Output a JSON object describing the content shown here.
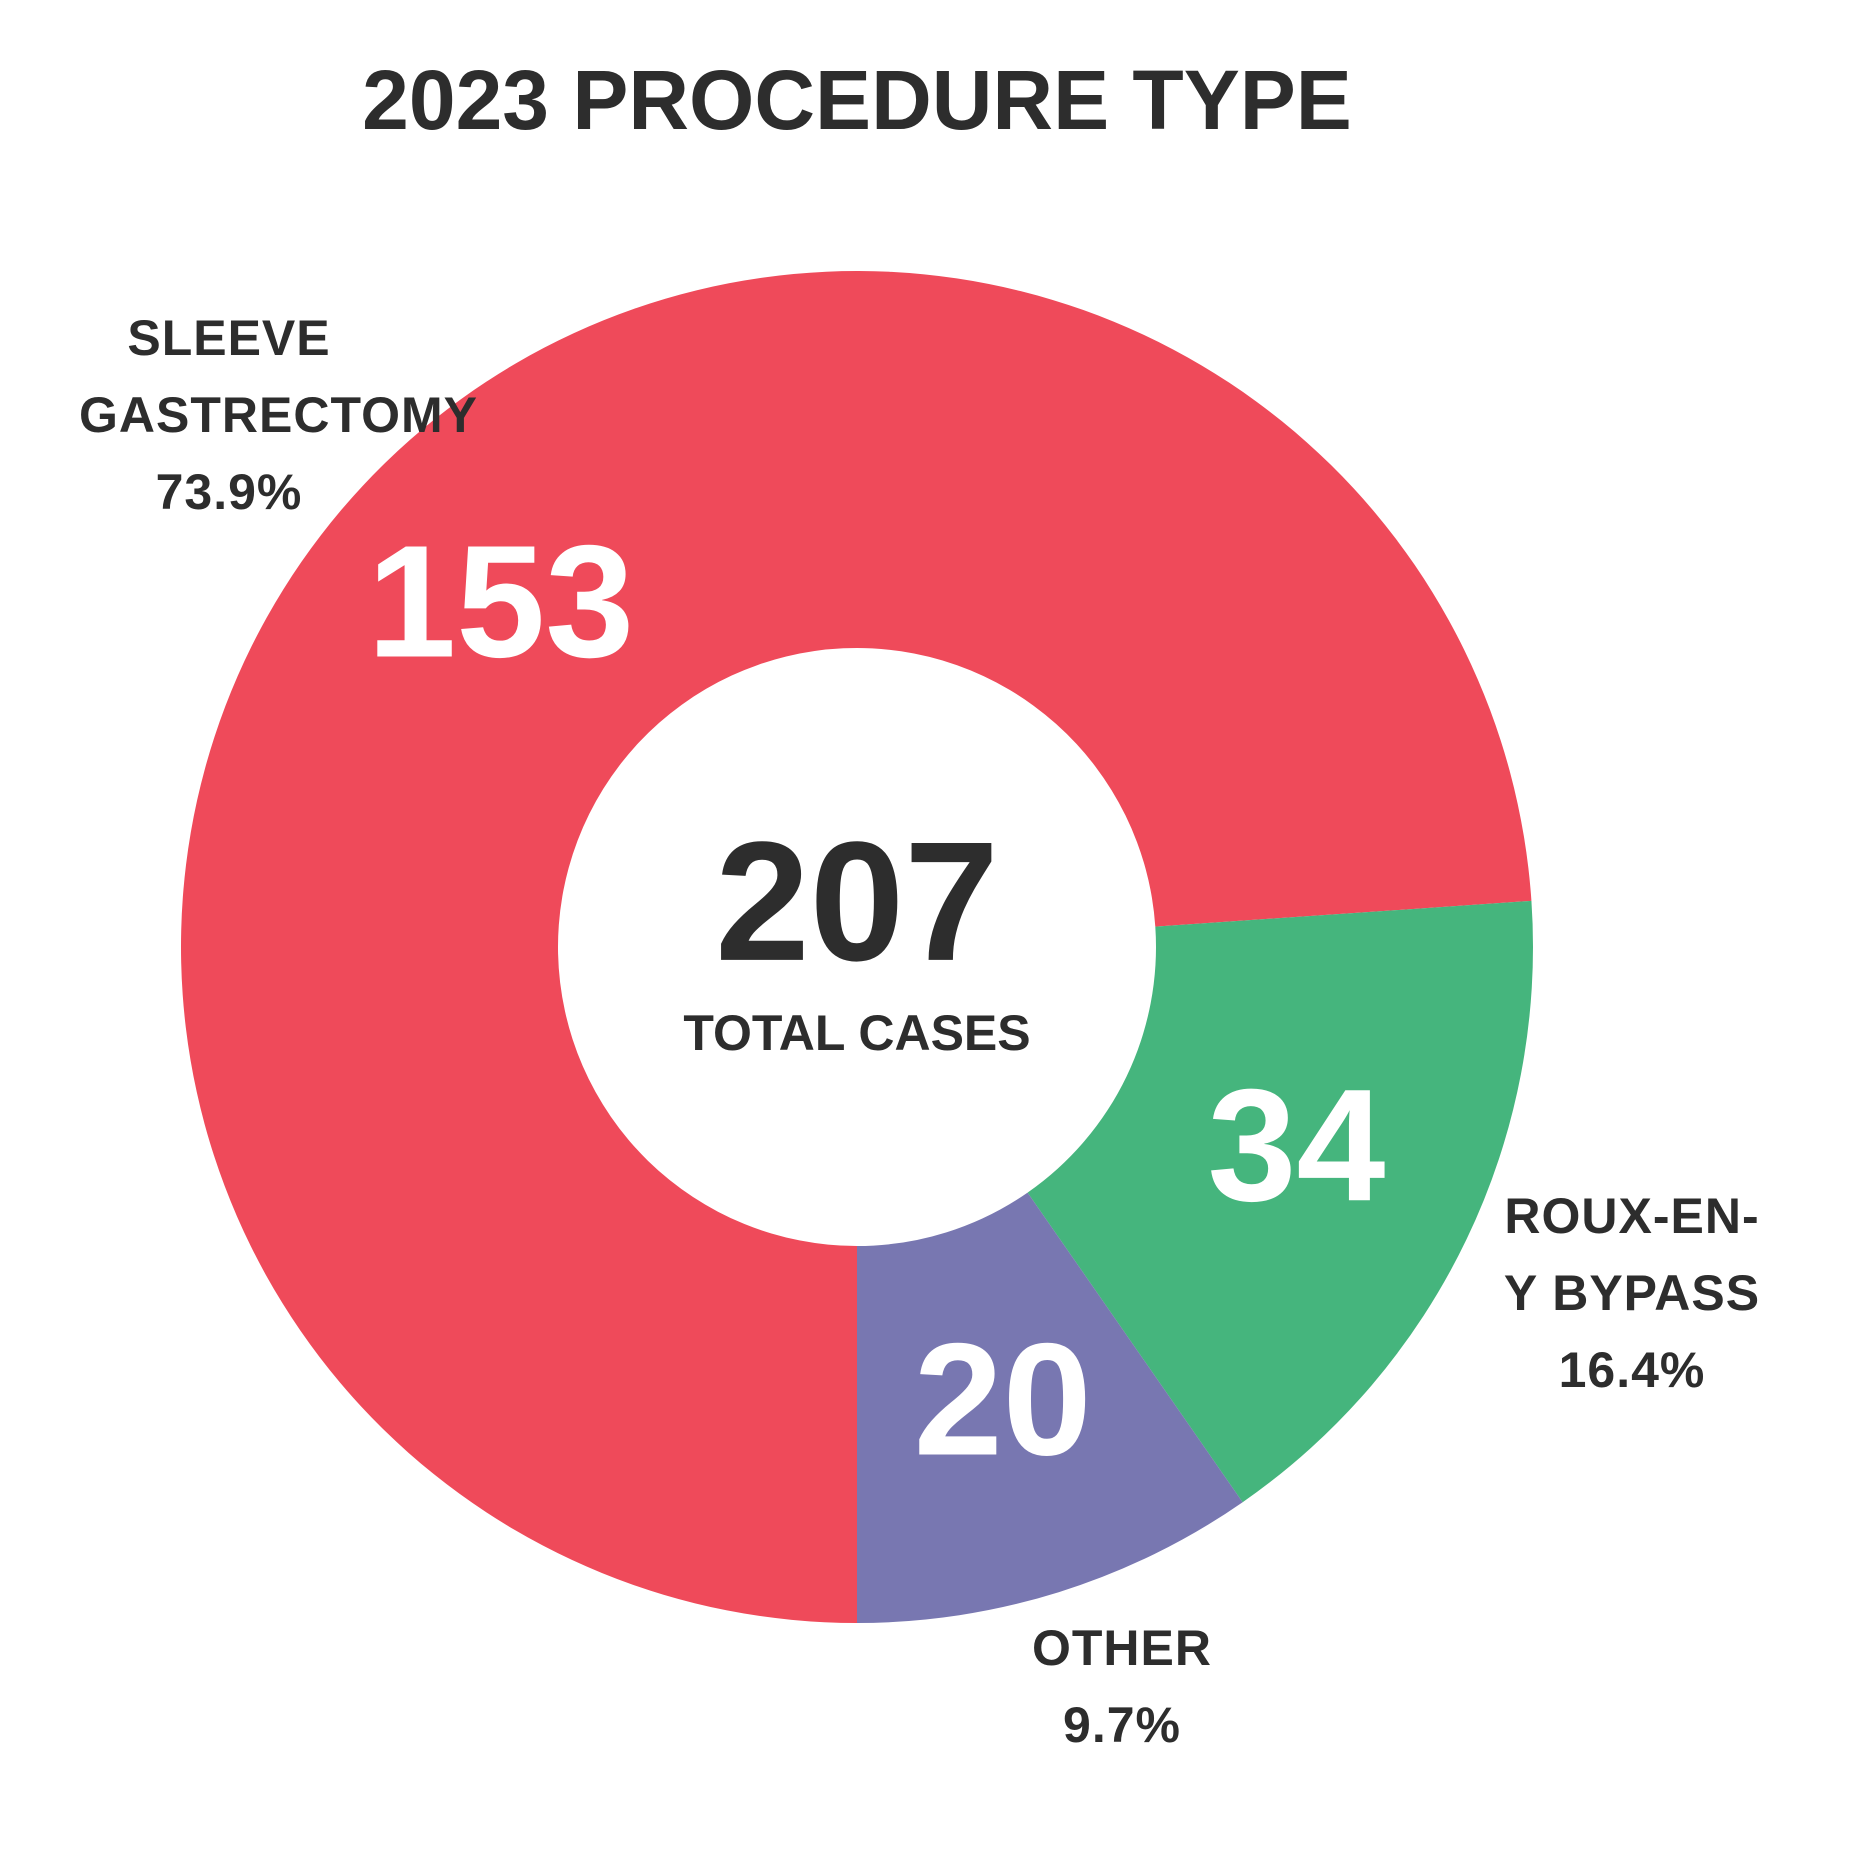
{
  "chart_data": {
    "type": "donut",
    "title": "2023 PROCEDURE TYPE",
    "categories": [
      "SLEEVE GASTRECTOMY",
      "ROUX-EN-Y BYPASS",
      "OTHER"
    ],
    "values": [
      153,
      34,
      20
    ],
    "percent_labels": [
      "73.9%",
      "16.4%",
      "9.7%"
    ],
    "colors": [
      "#ef4a5a",
      "#45b57d",
      "#7877b1"
    ],
    "center_value": "207",
    "center_label": "TOTAL CASES"
  }
}
